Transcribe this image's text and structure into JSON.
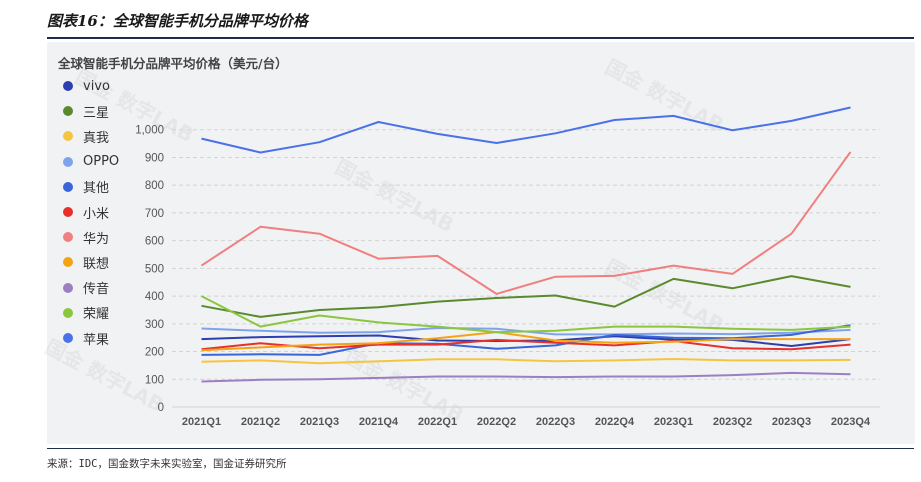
{
  "figure": {
    "title": "图表16：全球智能手机分品牌平均价格",
    "source": "来源：IDC，国金数字未来实验室，国金证券研究所",
    "watermark": "国金 数字LAB"
  },
  "chart_data": {
    "type": "line",
    "title": "全球智能手机分品牌平均价格（美元/台）",
    "xlabel": "",
    "ylabel": "",
    "ylim": [
      0,
      1100
    ],
    "yticks": [
      "0",
      "100",
      "200",
      "300",
      "400",
      "500",
      "600",
      "700",
      "800",
      "900",
      "1,000"
    ],
    "grid": true,
    "legend_position": "left",
    "categories": [
      "2021Q1",
      "2021Q2",
      "2021Q3",
      "2021Q4",
      "2022Q1",
      "2022Q2",
      "2022Q3",
      "2022Q4",
      "2023Q1",
      "2023Q2",
      "2023Q3",
      "2023Q4"
    ],
    "series": [
      {
        "name": "vivo",
        "color": "#2b3fb0",
        "values": [
          245,
          252,
          255,
          258,
          240,
          238,
          240,
          255,
          243,
          242,
          220,
          245
        ]
      },
      {
        "name": "三星",
        "color": "#5a8a2e",
        "values": [
          365,
          325,
          350,
          360,
          380,
          393,
          402,
          362,
          462,
          428,
          472,
          433
        ]
      },
      {
        "name": "真我",
        "color": "#f5c542",
        "values": [
          163,
          168,
          158,
          165,
          172,
          172,
          165,
          168,
          173,
          168,
          168,
          170
        ]
      },
      {
        "name": "OPPO",
        "color": "#7fa3ea",
        "values": [
          283,
          275,
          268,
          270,
          285,
          282,
          262,
          262,
          265,
          263,
          268,
          278
        ]
      },
      {
        "name": "其他",
        "color": "#3a66d8",
        "values": [
          188,
          190,
          188,
          230,
          228,
          210,
          222,
          260,
          250,
          248,
          260,
          295
        ]
      },
      {
        "name": "小米",
        "color": "#e8302b",
        "values": [
          208,
          230,
          212,
          225,
          225,
          242,
          232,
          222,
          238,
          212,
          208,
          225
        ]
      },
      {
        "name": "华为",
        "color": "#f07f7f",
        "values": [
          510,
          650,
          625,
          535,
          545,
          408,
          470,
          473,
          510,
          480,
          625,
          920
        ]
      },
      {
        "name": "联想",
        "color": "#f2a316",
        "values": [
          205,
          215,
          225,
          230,
          248,
          270,
          240,
          232,
          235,
          245,
          245,
          245
        ]
      },
      {
        "name": "传音",
        "color": "#9b7fc0",
        "values": [
          92,
          98,
          100,
          105,
          110,
          110,
          108,
          110,
          110,
          115,
          123,
          118
        ]
      },
      {
        "name": "荣耀",
        "color": "#8cc63f",
        "values": [
          400,
          290,
          330,
          305,
          290,
          270,
          275,
          290,
          290,
          282,
          278,
          290
        ]
      },
      {
        "name": "苹果",
        "color": "#4a72e8",
        "values": [
          968,
          918,
          955,
          1028,
          985,
          952,
          987,
          1035,
          1050,
          998,
          1032,
          1080
        ]
      }
    ]
  }
}
